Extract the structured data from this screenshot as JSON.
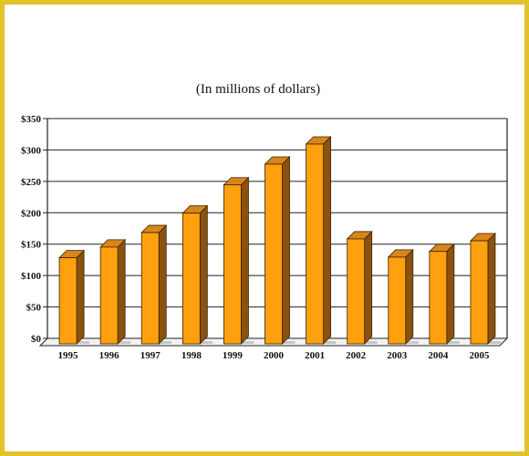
{
  "colors": {
    "frame": "#e2c22a",
    "bar_front": "#ffa00e",
    "bar_top": "#d9851b",
    "bar_side": "#8a5210",
    "floor": "#555555"
  },
  "chart_data": {
    "type": "bar",
    "title": "",
    "subtitle": "(In millions of dollars)",
    "xlabel": "",
    "ylabel": "",
    "categories": [
      "1995",
      "1996",
      "1997",
      "1998",
      "1999",
      "2000",
      "2001",
      "2002",
      "2003",
      "2004",
      "2005"
    ],
    "values": [
      140,
      157,
      180,
      211,
      256,
      289,
      321,
      170,
      141,
      150,
      167
    ],
    "ylim": [
      0,
      350
    ],
    "yticks": [
      0,
      50,
      100,
      150,
      200,
      250,
      300,
      350
    ],
    "ytick_labels": [
      "$0",
      "$50",
      "$100",
      "$150",
      "$200",
      "$250",
      "$300",
      "$350"
    ],
    "grid": true,
    "legend": "none",
    "style": "3d-columns"
  }
}
